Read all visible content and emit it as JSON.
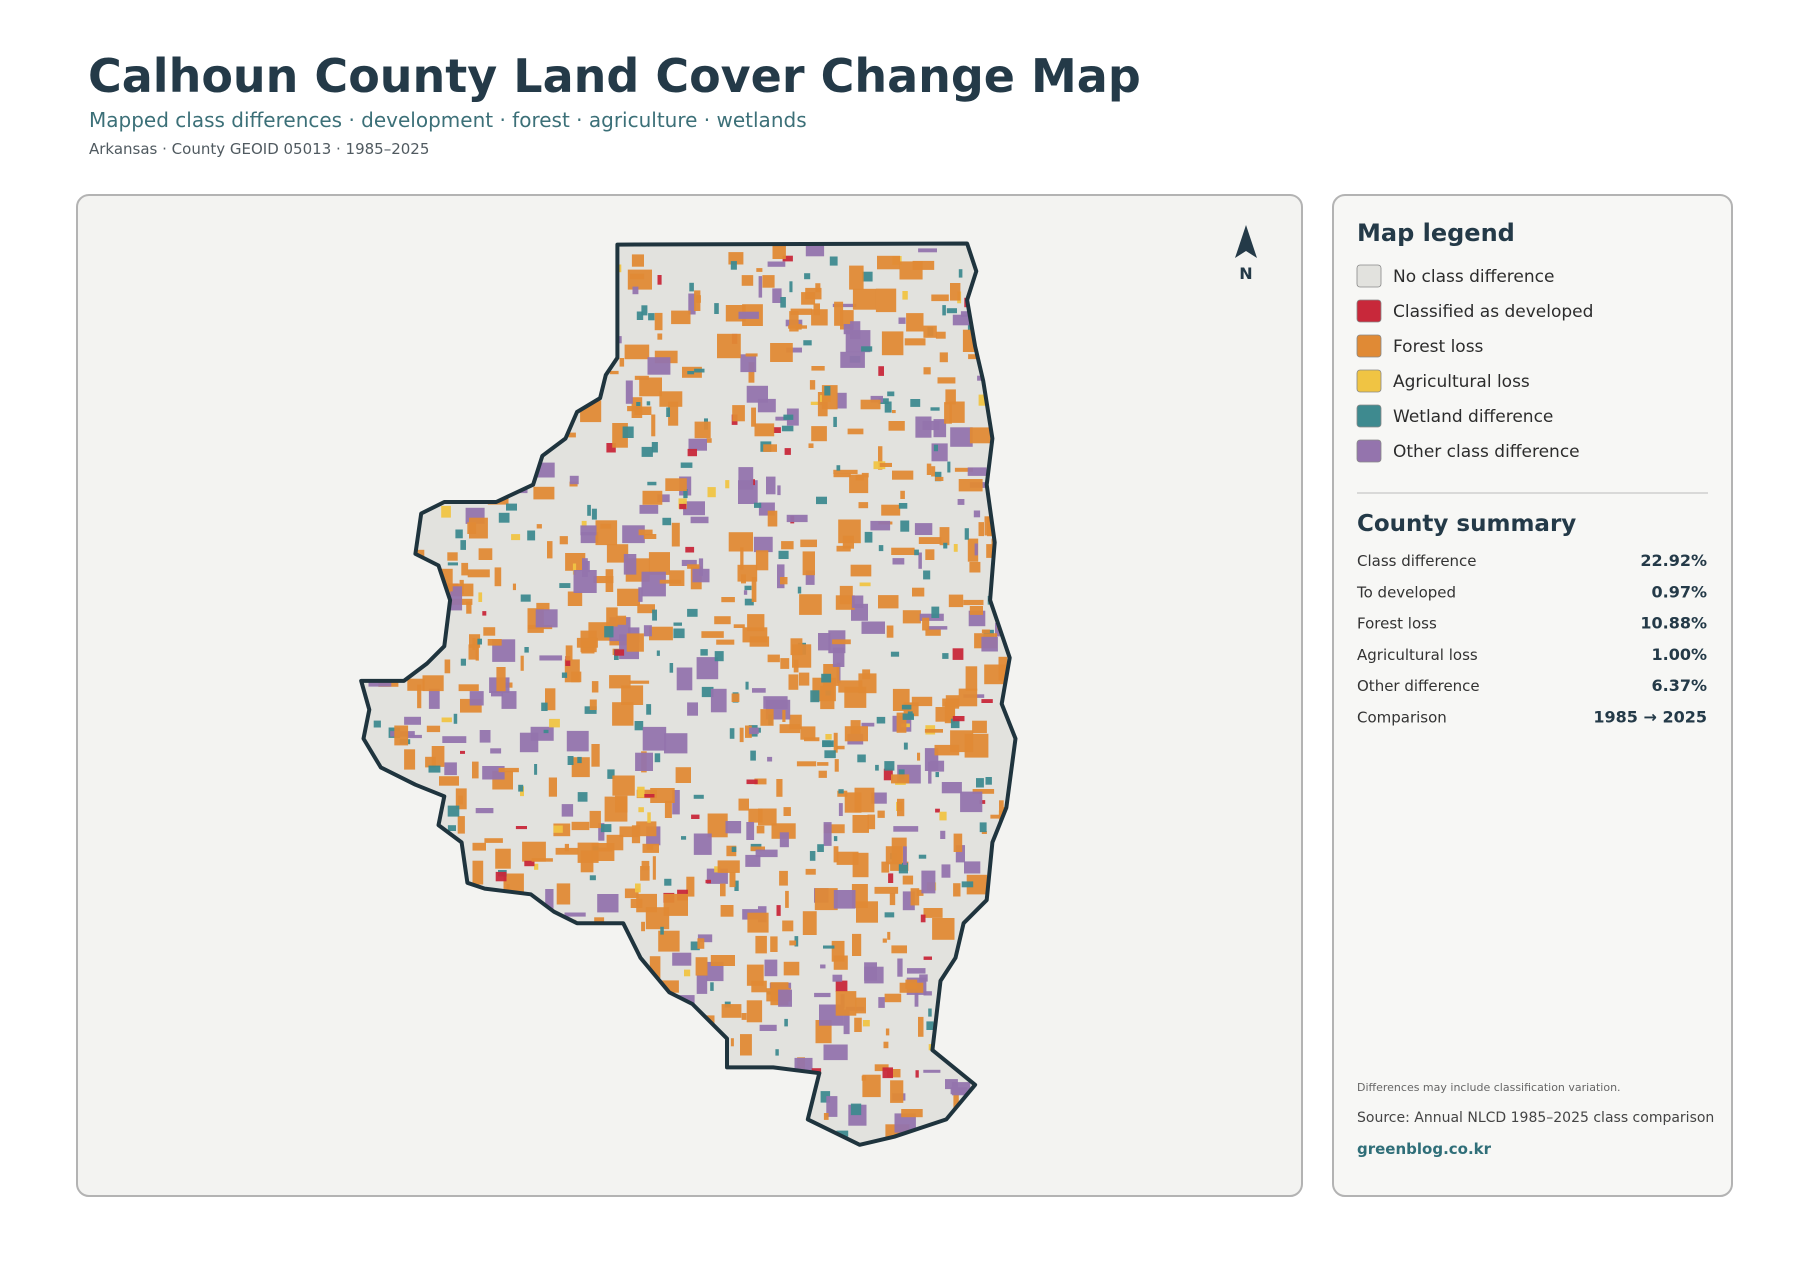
{
  "header": {
    "title": "Calhoun County Land Cover Change Map",
    "subtitle": "Mapped class differences · development · forest · agriculture · wetlands",
    "meta": "Arkansas · County GEOID 05013 · 1985–2025"
  },
  "map": {
    "north_label": "N"
  },
  "legend": {
    "title": "Map legend",
    "items": [
      {
        "label": "No class difference",
        "color": "#e2e2de"
      },
      {
        "label": "Classified as developed",
        "color": "#c8283a"
      },
      {
        "label": "Forest loss",
        "color": "#e08a35"
      },
      {
        "label": "Agricultural loss",
        "color": "#f0c443"
      },
      {
        "label": "Wetland difference",
        "color": "#3e8a8f"
      },
      {
        "label": "Other class difference",
        "color": "#9474ad"
      }
    ]
  },
  "summary": {
    "title": "County summary",
    "rows": [
      [
        "Class difference",
        "22.92%"
      ],
      [
        "To developed",
        "0.97%"
      ],
      [
        "Forest loss",
        "10.88%"
      ],
      [
        "Agricultural loss",
        "1.00%"
      ],
      [
        "Other difference",
        "6.37%"
      ],
      [
        "Comparison",
        "1985 → 2025"
      ]
    ]
  },
  "footer": {
    "note": "Differences may include classification variation.",
    "source": "Source: Annual NLCD 1985–2025 class comparison",
    "link": "greenblog.co.kr"
  }
}
